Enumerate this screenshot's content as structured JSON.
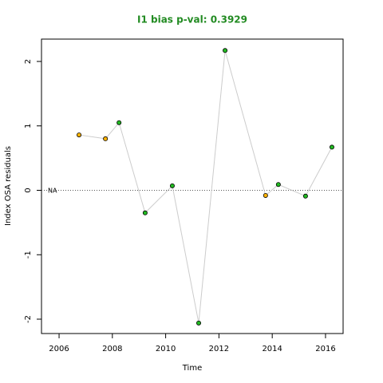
{
  "chart_data": {
    "type": "line-scatter",
    "title": "I1 bias p-val: 0.3929",
    "title_color": "#228B22",
    "xlabel": "Time",
    "ylabel": "Index OSA residuals",
    "annotation": "NA",
    "x": [
      2006.75,
      2007.74,
      2008.25,
      2009.23,
      2010.25,
      2011.24,
      2012.23,
      2013.75,
      2014.23,
      2015.25,
      2016.24
    ],
    "values": [
      0.86,
      0.8,
      1.05,
      -0.35,
      0.07,
      -2.06,
      2.17,
      -0.08,
      0.09,
      -0.09,
      0.67
    ],
    "colors": [
      "#FFB300",
      "#FFB300",
      "#22BB22",
      "#22BB22",
      "#22BB22",
      "#22BB22",
      "#22BB22",
      "#FFB300",
      "#22BB22",
      "#22BB22",
      "#22BB22"
    ],
    "line_color": "#cccccc",
    "hline": 0,
    "xlim": [
      2005.34,
      2016.66
    ],
    "ylim": [
      -2.223,
      2.347
    ],
    "xticks": [
      2006,
      2008,
      2010,
      2012,
      2014,
      2016
    ],
    "yticks": [
      -2,
      -1,
      0,
      1,
      2
    ]
  }
}
